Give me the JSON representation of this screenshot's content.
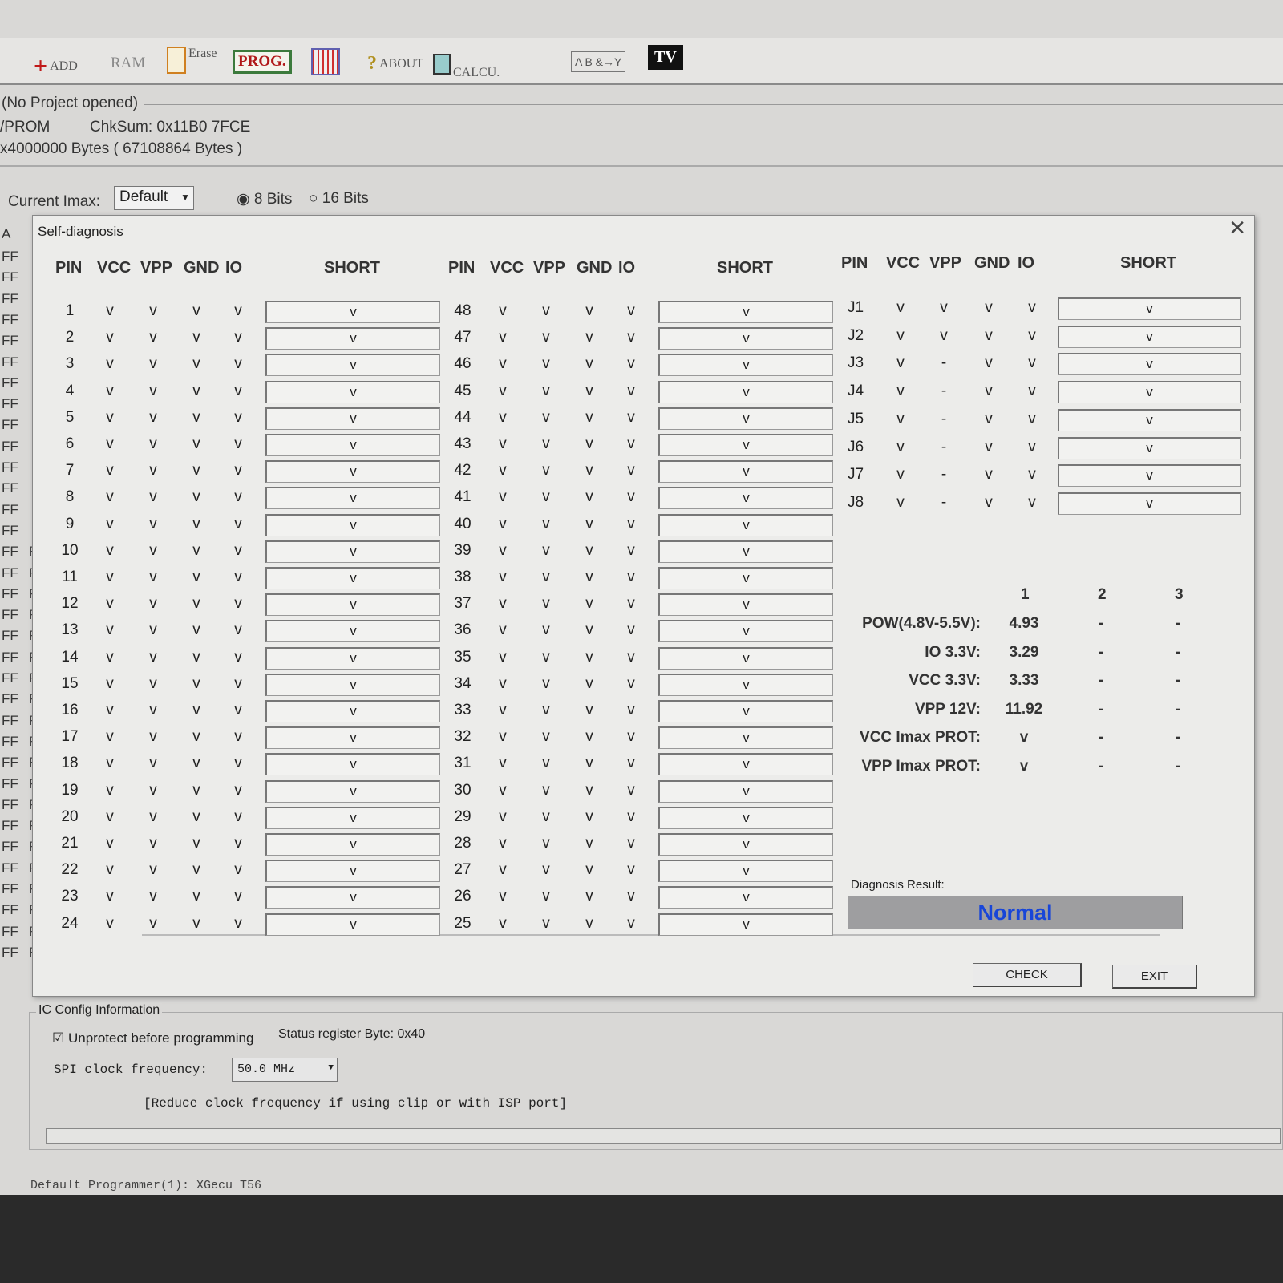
{
  "toolbar": {
    "add": "ADD",
    "ram": "RAM",
    "erase": "Erase",
    "prog": "PROG.",
    "about": "ABOUT",
    "calcu": "CALCU.",
    "logic": "A B &→Y",
    "tv": "TV"
  },
  "project": {
    "title": "(No Project opened)",
    "type": "/PROM",
    "checksum": "ChkSum:  0x11B0 7FCE",
    "size": "x4000000 Bytes ( 67108864 Bytes )",
    "imax_label": "Current Imax:",
    "imax_value": "Default",
    "bits8": "8 Bits",
    "bits16": "16 Bits",
    "bits_selected": "8 Bits"
  },
  "hex_header": "A",
  "hex_value": "FF",
  "dialog": {
    "title": "Self-diagnosis",
    "close": "✕",
    "headers": {
      "pin": "PIN",
      "vcc": "VCC",
      "vpp": "VPP",
      "gnd": "GND",
      "io": "IO",
      "short": "SHORT"
    },
    "left_pins": [
      "1",
      "2",
      "3",
      "4",
      "5",
      "6",
      "7",
      "8",
      "9",
      "10",
      "11",
      "12",
      "13",
      "14",
      "15",
      "16",
      "17",
      "18",
      "19",
      "20",
      "21",
      "22",
      "23",
      "24"
    ],
    "mid_pins": [
      "48",
      "47",
      "46",
      "45",
      "44",
      "43",
      "42",
      "41",
      "40",
      "39",
      "38",
      "37",
      "36",
      "35",
      "34",
      "33",
      "32",
      "31",
      "30",
      "29",
      "28",
      "27",
      "26",
      "25"
    ],
    "right_pins": [
      {
        "pin": "J1",
        "vcc": "v",
        "vpp": "v",
        "gnd": "v",
        "io": "v",
        "short": "v"
      },
      {
        "pin": "J2",
        "vcc": "v",
        "vpp": "v",
        "gnd": "v",
        "io": "v",
        "short": "v"
      },
      {
        "pin": "J3",
        "vcc": "v",
        "vpp": "-",
        "gnd": "v",
        "io": "v",
        "short": "v"
      },
      {
        "pin": "J4",
        "vcc": "v",
        "vpp": "-",
        "gnd": "v",
        "io": "v",
        "short": "v"
      },
      {
        "pin": "J5",
        "vcc": "v",
        "vpp": "-",
        "gnd": "v",
        "io": "v",
        "short": "v"
      },
      {
        "pin": "J6",
        "vcc": "v",
        "vpp": "-",
        "gnd": "v",
        "io": "v",
        "short": "v"
      },
      {
        "pin": "J7",
        "vcc": "v",
        "vpp": "-",
        "gnd": "v",
        "io": "v",
        "short": "v"
      },
      {
        "pin": "J8",
        "vcc": "v",
        "vpp": "-",
        "gnd": "v",
        "io": "v",
        "short": "v"
      }
    ],
    "check_mark": "v",
    "voltage_columns": [
      "1",
      "2",
      "3"
    ],
    "voltages": [
      {
        "label": "POW(4.8V-5.5V):",
        "values": [
          "4.93",
          "-",
          "-"
        ]
      },
      {
        "label": "IO  3.3V:",
        "values": [
          "3.29",
          "-",
          "-"
        ]
      },
      {
        "label": "VCC 3.3V:",
        "values": [
          "3.33",
          "-",
          "-"
        ]
      },
      {
        "label": "VPP  12V:",
        "values": [
          "11.92",
          "-",
          "-"
        ]
      },
      {
        "label": "VCC Imax PROT:",
        "values": [
          "v",
          "-",
          "-"
        ]
      },
      {
        "label": "VPP Imax PROT:",
        "values": [
          "v",
          "-",
          "-"
        ]
      }
    ],
    "result_label": "Diagnosis Result:",
    "result": "Normal",
    "check": "CHECK",
    "exit": "EXIT"
  },
  "ic_config": {
    "title": "IC Config Information",
    "unprotect": "Unprotect before programming",
    "unprotect_checked": true,
    "status": "Status register Byte: 0x40",
    "spi_label": "SPI clock frequency:",
    "spi_value": "50.0 MHz",
    "note": "[Reduce clock frequency if using clip or with ISP port]"
  },
  "status_bar": "Default Programmer(1): XGecu T56",
  "colors": {
    "result_text": "#1846d8",
    "prog_text": "#b01818"
  }
}
